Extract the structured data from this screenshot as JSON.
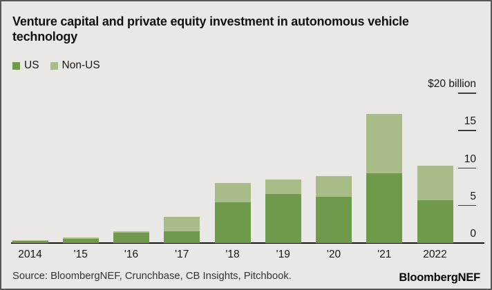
{
  "header": {
    "title": "Venture capital and private equity investment in autonomous vehicle technology"
  },
  "legend": [
    {
      "label": "US",
      "color": "#6f9a4c"
    },
    {
      "label": "Non-US",
      "color": "#a7bc87"
    }
  ],
  "footer": {
    "source": "Source: BloombergNEF, Crunchbase, CB Insights, Pitchbook.",
    "logo": "BloombergNEF"
  },
  "colors": {
    "background": "#e9e8e6",
    "border": "#55565a",
    "us_green": "#6f9a4c",
    "non_us_green": "#a7bc87",
    "axis": "#141414"
  },
  "chart_data": {
    "type": "bar",
    "stacked": true,
    "title": "Venture capital and private equity investment in autonomous vehicle technology",
    "categories": [
      "2014",
      "'15",
      "'16",
      "'17",
      "'18",
      "'19",
      "'20",
      "'21",
      "2022"
    ],
    "series": [
      {
        "name": "US",
        "color": "#6f9a4c",
        "values": [
          0.3,
          0.55,
          1.4,
          1.6,
          5.4,
          6.5,
          6.2,
          9.3,
          5.7
        ]
      },
      {
        "name": "Non-US",
        "color": "#a7bc87",
        "values": [
          0.1,
          0.15,
          0.2,
          1.9,
          2.6,
          2.0,
          2.7,
          7.9,
          4.6
        ]
      }
    ],
    "totals": [
      0.4,
      0.7,
      1.6,
      3.5,
      8.0,
      8.5,
      8.9,
      17.2,
      10.3
    ],
    "xlabel": "",
    "ylabel": "$ billion",
    "ylim": [
      0,
      20
    ],
    "yticks": [
      0,
      5,
      10,
      15,
      20
    ],
    "ytick_labels": [
      "0",
      "5",
      "10",
      "15",
      "$20 billion"
    ],
    "axis_side": "right",
    "grid": false,
    "legend_position": "top-left"
  }
}
